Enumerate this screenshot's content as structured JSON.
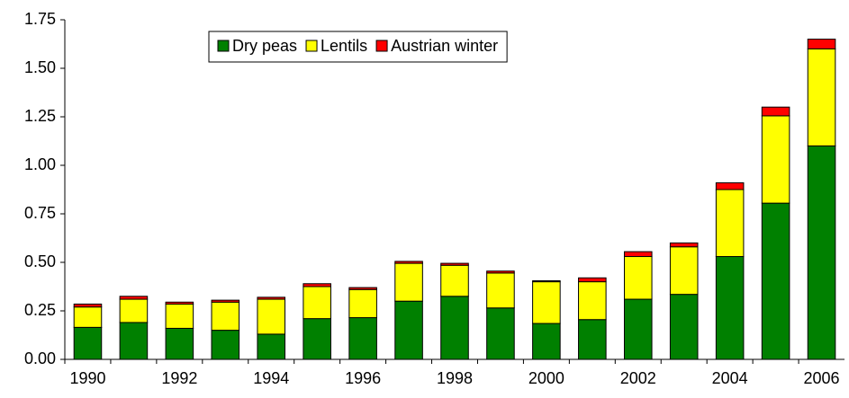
{
  "chart_data": {
    "type": "stacked_bar",
    "categories": [
      "1990",
      null,
      "1992",
      null,
      "1994",
      null,
      "1996",
      null,
      "1998",
      null,
      "2000",
      null,
      "2002",
      null,
      "2004",
      null,
      "2006"
    ],
    "series": [
      {
        "name": "Dry peas",
        "color": "#008000",
        "values": [
          0.165,
          0.19,
          0.16,
          0.15,
          0.13,
          0.21,
          0.215,
          0.3,
          0.325,
          0.265,
          0.185,
          0.205,
          0.31,
          0.335,
          0.53,
          0.805,
          1.1
        ]
      },
      {
        "name": "Lentils",
        "color": "#ffff00",
        "values": [
          0.105,
          0.12,
          0.125,
          0.145,
          0.18,
          0.165,
          0.145,
          0.195,
          0.16,
          0.18,
          0.215,
          0.195,
          0.22,
          0.245,
          0.345,
          0.45,
          0.5
        ]
      },
      {
        "name": "Austrian winter",
        "color": "#ff0000",
        "values": [
          0.015,
          0.015,
          0.01,
          0.01,
          0.01,
          0.015,
          0.01,
          0.01,
          0.01,
          0.01,
          0.005,
          0.02,
          0.025,
          0.02,
          0.035,
          0.045,
          0.05
        ]
      }
    ],
    "ylim": [
      0,
      1.75
    ],
    "yticks": [
      {
        "value": 0,
        "label": "0.00"
      },
      {
        "value": 0.25,
        "label": "0.25"
      },
      {
        "value": 0.5,
        "label": "0.50"
      },
      {
        "value": 0.75,
        "label": "0.75"
      },
      {
        "value": 1,
        "label": "1.00"
      },
      {
        "value": 1.25,
        "label": "1.25"
      },
      {
        "value": 1.5,
        "label": "1.50"
      },
      {
        "value": 1.75,
        "label": "1.75"
      }
    ],
    "legend": "top"
  }
}
